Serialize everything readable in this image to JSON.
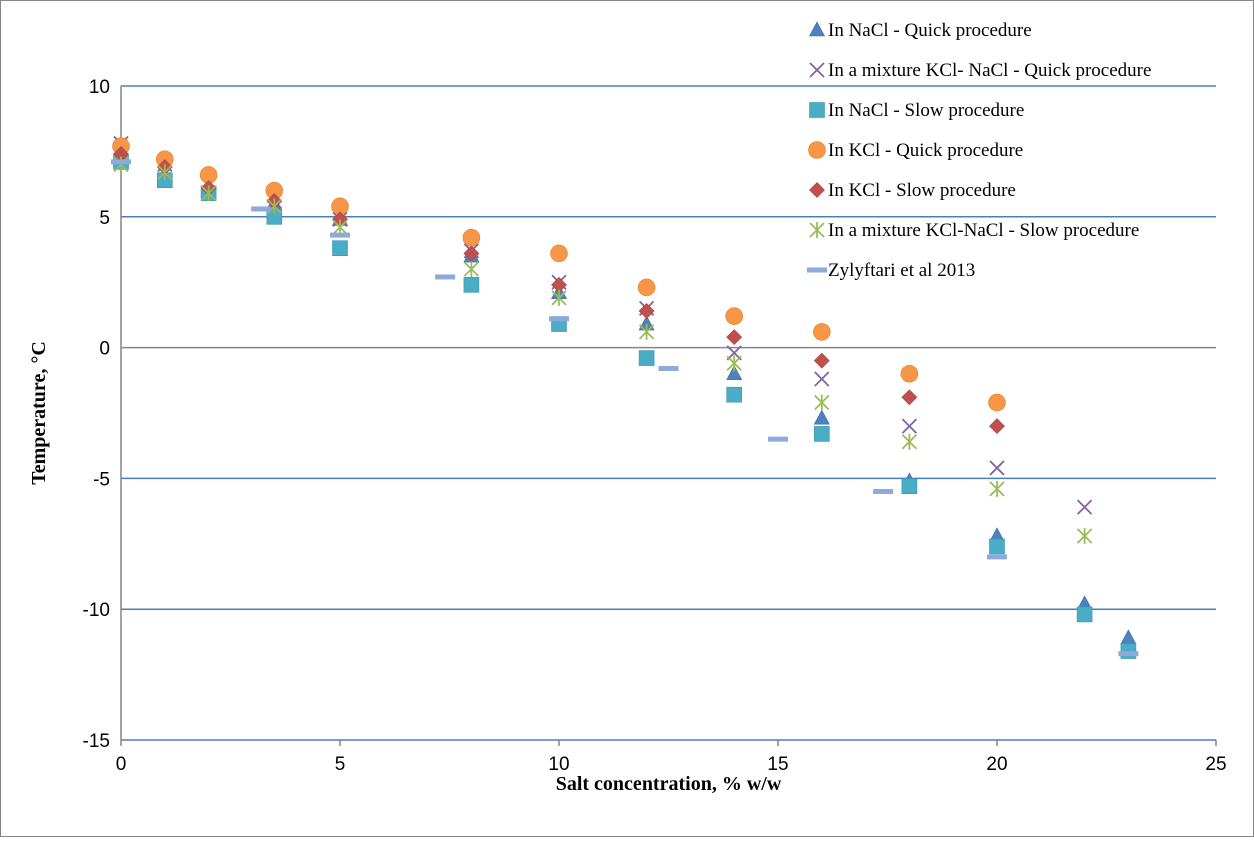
{
  "chart_data": {
    "type": "scatter",
    "title": "",
    "xlabel": "Salt concentration, % w/w",
    "ylabel": "Temperature, °C",
    "xlim": [
      0,
      25
    ],
    "ylim": [
      -15,
      10
    ],
    "x_ticks": [
      "0",
      "5",
      "10",
      "15",
      "20",
      "25"
    ],
    "y_ticks": [
      "10",
      "5",
      "0",
      "-5",
      "-10",
      "-15"
    ],
    "x_tick_values": [
      0,
      5,
      10,
      15,
      20,
      25
    ],
    "y_tick_values": [
      10,
      5,
      0,
      -5,
      -10,
      -15
    ],
    "grid": "horizontal",
    "legend_position": "top-right",
    "series": [
      {
        "name": "In NaCl - Quick procedure",
        "marker": "triangle",
        "color": "#4F81BD",
        "points": [
          [
            0,
            7.3
          ],
          [
            1,
            6.6
          ],
          [
            2,
            6.0
          ],
          [
            3.5,
            5.5
          ],
          [
            5,
            4.9
          ],
          [
            8,
            3.5
          ],
          [
            10,
            2.1
          ],
          [
            12,
            0.9
          ],
          [
            14,
            -1.0
          ],
          [
            16,
            -2.7
          ],
          [
            18,
            -5.1
          ],
          [
            20,
            -7.2
          ],
          [
            22,
            -9.8
          ],
          [
            23,
            -11.1
          ]
        ]
      },
      {
        "name": "In a mixture KCl- NaCl - Quick procedure",
        "marker": "x",
        "color": "#8064A2",
        "points": [
          [
            0,
            7.8
          ],
          [
            1,
            7.0
          ],
          [
            2,
            6.2
          ],
          [
            3.5,
            5.6
          ],
          [
            5,
            4.9
          ],
          [
            8,
            3.7
          ],
          [
            10,
            2.5
          ],
          [
            12,
            1.5
          ],
          [
            14,
            -0.2
          ],
          [
            16,
            -1.2
          ],
          [
            18,
            -3.0
          ],
          [
            20,
            -4.6
          ],
          [
            22,
            -6.1
          ]
        ]
      },
      {
        "name": "In NaCl - Slow procedure",
        "marker": "square",
        "color": "#4BACC6",
        "points": [
          [
            0,
            7.1
          ],
          [
            1,
            6.4
          ],
          [
            2,
            5.9
          ],
          [
            3.5,
            5.0
          ],
          [
            5,
            3.8
          ],
          [
            8,
            2.4
          ],
          [
            10,
            0.9
          ],
          [
            12,
            -0.4
          ],
          [
            14,
            -1.8
          ],
          [
            16,
            -3.3
          ],
          [
            18,
            -5.3
          ],
          [
            20,
            -7.6
          ],
          [
            22,
            -10.2
          ],
          [
            23,
            -11.6
          ]
        ]
      },
      {
        "name": "In KCl - Quick procedure",
        "marker": "circle",
        "color": "#F79646",
        "points": [
          [
            0,
            7.7
          ],
          [
            1,
            7.2
          ],
          [
            2,
            6.6
          ],
          [
            3.5,
            6.0
          ],
          [
            5,
            5.4
          ],
          [
            8,
            4.2
          ],
          [
            10,
            3.6
          ],
          [
            12,
            2.3
          ],
          [
            14,
            1.2
          ],
          [
            16,
            0.6
          ],
          [
            18,
            -1.0
          ],
          [
            20,
            -2.1
          ]
        ]
      },
      {
        "name": "In KCl - Slow procedure",
        "marker": "diamond",
        "color": "#C0504D",
        "points": [
          [
            0,
            7.4
          ],
          [
            1,
            6.9
          ],
          [
            2,
            6.1
          ],
          [
            3.5,
            5.6
          ],
          [
            5,
            4.9
          ],
          [
            8,
            3.6
          ],
          [
            10,
            2.4
          ],
          [
            12,
            1.4
          ],
          [
            14,
            0.4
          ],
          [
            16,
            -0.5
          ],
          [
            18,
            -1.9
          ],
          [
            20,
            -3.0
          ]
        ]
      },
      {
        "name": "In a mixture KCl-NaCl -  Slow procedure",
        "marker": "asterisk",
        "color": "#9BBB59",
        "points": [
          [
            0,
            7.0
          ],
          [
            1,
            6.7
          ],
          [
            2,
            5.9
          ],
          [
            3.5,
            5.4
          ],
          [
            5,
            4.6
          ],
          [
            8,
            3.0
          ],
          [
            10,
            1.9
          ],
          [
            12,
            0.6
          ],
          [
            14,
            -0.6
          ],
          [
            16,
            -2.1
          ],
          [
            18,
            -3.6
          ],
          [
            20,
            -5.4
          ],
          [
            22,
            -7.2
          ]
        ]
      },
      {
        "name": "Zylyftari et al 2013",
        "marker": "dash",
        "color": "#8EA9DB",
        "points": [
          [
            0,
            7.1
          ],
          [
            3.2,
            5.3
          ],
          [
            5,
            4.3
          ],
          [
            7.4,
            2.7
          ],
          [
            10,
            1.1
          ],
          [
            12.5,
            -0.8
          ],
          [
            15,
            -3.5
          ],
          [
            17.4,
            -5.5
          ],
          [
            20,
            -8.0
          ],
          [
            23,
            -11.7
          ]
        ]
      }
    ]
  }
}
